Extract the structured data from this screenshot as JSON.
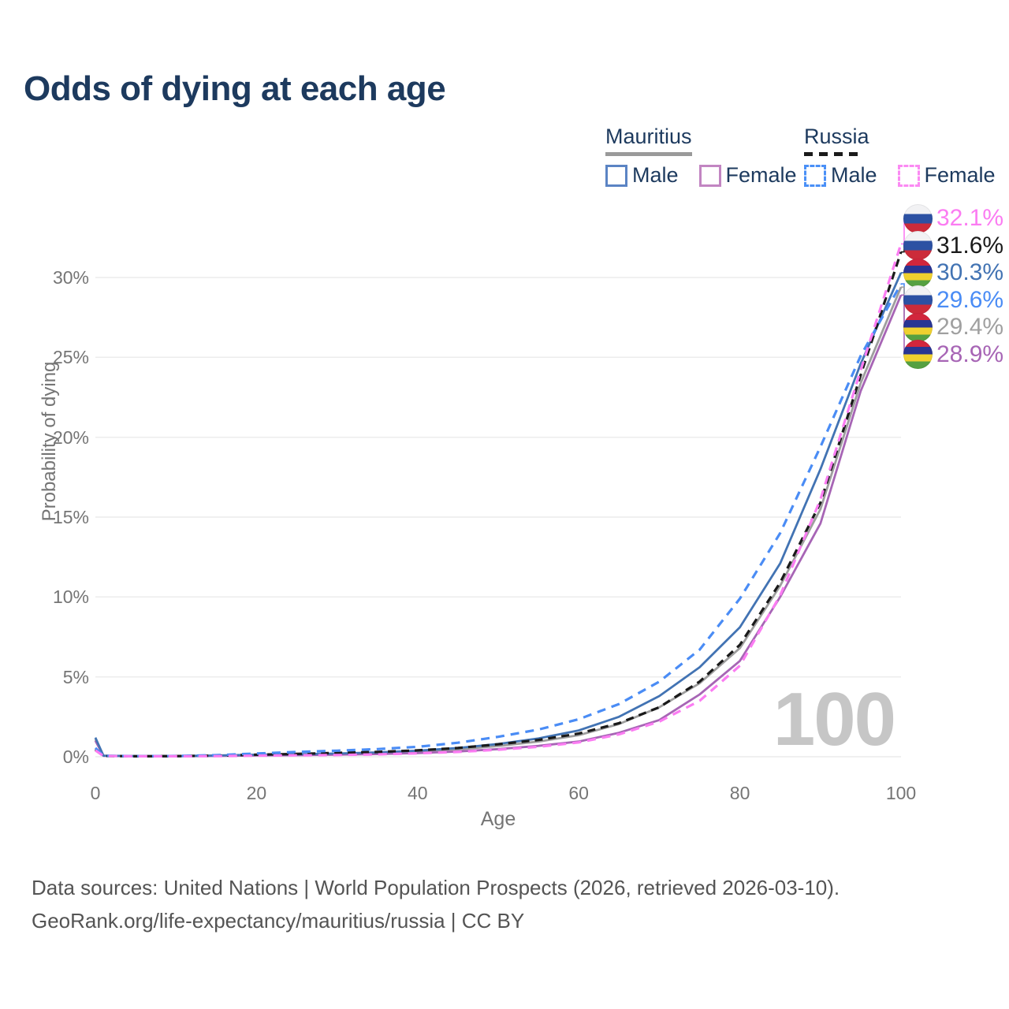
{
  "title": "Odds of dying at each age",
  "legend": {
    "groups": [
      {
        "name": "Mauritius",
        "line_style": "solid",
        "underline_color": "#9a9a9a",
        "items": [
          {
            "label": "Male",
            "color": "#5b84c4"
          },
          {
            "label": "Female",
            "color": "#c285c2"
          }
        ]
      },
      {
        "name": "Russia",
        "line_style": "dashed",
        "underline_color": "#1a1a1a",
        "items": [
          {
            "label": "Male",
            "color": "#4a90f7"
          },
          {
            "label": "Female",
            "color": "#fb8af3"
          }
        ]
      }
    ]
  },
  "axes": {
    "x": {
      "label": "Age",
      "ticks": [
        {
          "value": 0,
          "label": "0"
        },
        {
          "value": 20,
          "label": "20"
        },
        {
          "value": 40,
          "label": "40"
        },
        {
          "value": 60,
          "label": "60"
        },
        {
          "value": 80,
          "label": "80"
        },
        {
          "value": 100,
          "label": "100"
        }
      ]
    },
    "y": {
      "label": "Probability of dying",
      "ticks": [
        {
          "value": 0,
          "label": "0%"
        },
        {
          "value": 5,
          "label": "5%"
        },
        {
          "value": 10,
          "label": "10%"
        },
        {
          "value": 15,
          "label": "15%"
        },
        {
          "value": 20,
          "label": "20%"
        },
        {
          "value": 25,
          "label": "25%"
        },
        {
          "value": 30,
          "label": "30%"
        }
      ]
    }
  },
  "right_labels": [
    {
      "flag": "russia",
      "country": "Russia",
      "series": "Female",
      "value": "32.1%",
      "color": "#fb7cf2",
      "end_pct": 32.1
    },
    {
      "flag": "russia",
      "country": "Russia",
      "series": "Total",
      "value": "31.6%",
      "color": "#1a1a1a",
      "end_pct": 31.6
    },
    {
      "flag": "mauritius",
      "country": "Mauritius",
      "series": "Male",
      "value": "30.3%",
      "color": "#4273b3",
      "end_pct": 30.3
    },
    {
      "flag": "russia",
      "country": "Russia",
      "series": "Male",
      "value": "29.6%",
      "color": "#4a8cf5",
      "end_pct": 29.6
    },
    {
      "flag": "mauritius",
      "country": "Mauritius",
      "series": "Total",
      "value": "29.4%",
      "color": "#a0a0a0",
      "end_pct": 29.4
    },
    {
      "flag": "mauritius",
      "country": "Mauritius",
      "series": "Female",
      "value": "28.9%",
      "color": "#a765b5",
      "end_pct": 28.9
    }
  ],
  "watermark": "100",
  "footer": {
    "line1": "Data sources: United Nations | World Population Prospects (2026, retrieved 2026-03-10).",
    "line2": "GeoRank.org/life-expectancy/mauritius/russia | CC BY"
  },
  "chart_data": {
    "type": "line",
    "title": "Odds of dying at each age",
    "xlabel": "Age",
    "ylabel": "Probability of dying",
    "xlim": [
      0,
      100
    ],
    "ylim": [
      0,
      30
    ],
    "grid": "horizontal",
    "legend_position": "top-right",
    "x": [
      0,
      1,
      5,
      10,
      15,
      20,
      25,
      30,
      35,
      40,
      45,
      50,
      55,
      60,
      65,
      70,
      75,
      80,
      85,
      90,
      95,
      100
    ],
    "series": [
      {
        "name": "Mauritius Total",
        "country": "Mauritius",
        "sex": "both",
        "color": "#9e9e9e",
        "dashed": false,
        "dash": "",
        "end_label": "29.4%",
        "values": [
          1.1,
          0.07,
          0.04,
          0.04,
          0.07,
          0.11,
          0.14,
          0.17,
          0.23,
          0.32,
          0.46,
          0.67,
          0.95,
          1.35,
          2.05,
          3.1,
          4.6,
          6.8,
          10.7,
          15.5,
          23.4,
          29.4
        ]
      },
      {
        "name": "Mauritius Female",
        "country": "Mauritius",
        "sex": "female",
        "color": "#a765b5",
        "dashed": false,
        "dash": "",
        "end_label": "28.9%",
        "values": [
          1.0,
          0.06,
          0.03,
          0.03,
          0.05,
          0.08,
          0.1,
          0.13,
          0.17,
          0.23,
          0.33,
          0.48,
          0.68,
          0.95,
          1.5,
          2.3,
          3.9,
          6.0,
          10.0,
          14.6,
          22.9,
          28.9
        ]
      },
      {
        "name": "Mauritius Male",
        "country": "Mauritius",
        "sex": "male",
        "color": "#4273b3",
        "dashed": false,
        "dash": "",
        "end_label": "30.3%",
        "values": [
          1.2,
          0.07,
          0.04,
          0.04,
          0.08,
          0.13,
          0.16,
          0.2,
          0.27,
          0.38,
          0.55,
          0.8,
          1.15,
          1.65,
          2.5,
          3.8,
          5.6,
          8.1,
          12.1,
          18.0,
          24.6,
          30.3
        ]
      },
      {
        "name": "Russia Total",
        "country": "Russia",
        "sex": "both",
        "color": "#1a1a1a",
        "dashed": true,
        "dash": "10 7",
        "end_label": "31.6%",
        "values": [
          0.45,
          0.05,
          0.03,
          0.04,
          0.07,
          0.13,
          0.18,
          0.24,
          0.3,
          0.4,
          0.55,
          0.78,
          1.05,
          1.45,
          2.1,
          3.1,
          4.7,
          7.0,
          10.9,
          15.9,
          23.9,
          31.6
        ]
      },
      {
        "name": "Russia Male",
        "country": "Russia",
        "sex": "male",
        "color": "#4a8cf5",
        "dashed": true,
        "dash": "11 8",
        "end_label": "29.6%",
        "values": [
          0.55,
          0.06,
          0.04,
          0.05,
          0.1,
          0.2,
          0.3,
          0.38,
          0.48,
          0.62,
          0.88,
          1.25,
          1.7,
          2.35,
          3.3,
          4.7,
          6.7,
          9.9,
          14.0,
          19.4,
          25.1,
          29.6
        ]
      },
      {
        "name": "Russia Female",
        "country": "Russia",
        "sex": "female",
        "color": "#fb7cf2",
        "dashed": true,
        "dash": "11 8",
        "end_label": "32.1%",
        "values": [
          0.4,
          0.05,
          0.03,
          0.03,
          0.04,
          0.07,
          0.09,
          0.11,
          0.15,
          0.21,
          0.3,
          0.44,
          0.62,
          0.9,
          1.4,
          2.2,
          3.5,
          5.7,
          10.1,
          16.1,
          24.2,
          32.1
        ]
      }
    ]
  }
}
